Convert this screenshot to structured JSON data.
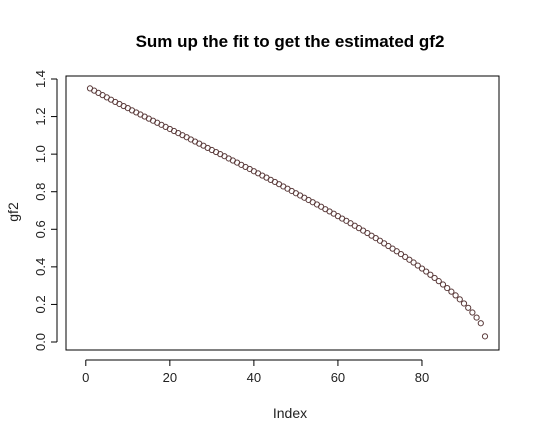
{
  "chart_data": {
    "type": "scatter",
    "title": "Sum up the fit to get the estimated gf2",
    "xlabel": "Index",
    "ylabel": "gf2",
    "xlim": [
      1,
      95
    ],
    "ylim": [
      0.0,
      1.4
    ],
    "x_ticks": [
      0,
      20,
      40,
      60,
      80
    ],
    "y_ticks": [
      0.0,
      0.2,
      0.4,
      0.6,
      0.8,
      1.0,
      1.2,
      1.4
    ],
    "x_tick_labels": [
      "0",
      "20",
      "40",
      "60",
      "80"
    ],
    "y_tick_labels": [
      "0.0",
      "0.2",
      "0.4",
      "0.6",
      "0.8",
      "1.0",
      "1.2",
      "1.4"
    ],
    "grid": false,
    "legend": false,
    "point_color": "#5a3a3a",
    "series": [
      {
        "x": [
          1,
          2,
          3,
          4,
          5,
          6,
          7,
          8,
          9,
          10,
          11,
          12,
          13,
          14,
          15,
          16,
          17,
          18,
          19,
          20,
          21,
          22,
          23,
          24,
          25,
          26,
          27,
          28,
          29,
          30,
          31,
          32,
          33,
          34,
          35,
          36,
          37,
          38,
          39,
          40,
          41,
          42,
          43,
          44,
          45,
          46,
          47,
          48,
          49,
          50,
          51,
          52,
          53,
          54,
          55,
          56,
          57,
          58,
          59,
          60,
          61,
          62,
          63,
          64,
          65,
          66,
          67,
          68,
          69,
          70,
          71,
          72,
          73,
          74,
          75,
          76,
          77,
          78,
          79,
          80,
          81,
          82,
          83,
          84,
          85,
          86,
          87,
          88,
          89,
          90,
          91,
          92,
          93,
          94,
          95
        ],
        "y": [
          1.35,
          1.338,
          1.326,
          1.314,
          1.302,
          1.29,
          1.278,
          1.267,
          1.256,
          1.245,
          1.233,
          1.222,
          1.211,
          1.2,
          1.189,
          1.178,
          1.167,
          1.156,
          1.145,
          1.134,
          1.123,
          1.112,
          1.101,
          1.09,
          1.078,
          1.067,
          1.056,
          1.045,
          1.033,
          1.022,
          1.011,
          1.0,
          0.989,
          0.977,
          0.966,
          0.955,
          0.943,
          0.932,
          0.921,
          0.909,
          0.898,
          0.886,
          0.875,
          0.863,
          0.852,
          0.84,
          0.828,
          0.816,
          0.804,
          0.792,
          0.78,
          0.768,
          0.756,
          0.744,
          0.732,
          0.72,
          0.707,
          0.695,
          0.683,
          0.67,
          0.657,
          0.645,
          0.632,
          0.619,
          0.606,
          0.593,
          0.58,
          0.566,
          0.553,
          0.539,
          0.525,
          0.511,
          0.497,
          0.483,
          0.468,
          0.453,
          0.438,
          0.423,
          0.407,
          0.391,
          0.375,
          0.358,
          0.341,
          0.324,
          0.306,
          0.287,
          0.268,
          0.248,
          0.227,
          0.205,
          0.182,
          0.157,
          0.13,
          0.1,
          0.03
        ]
      }
    ]
  }
}
